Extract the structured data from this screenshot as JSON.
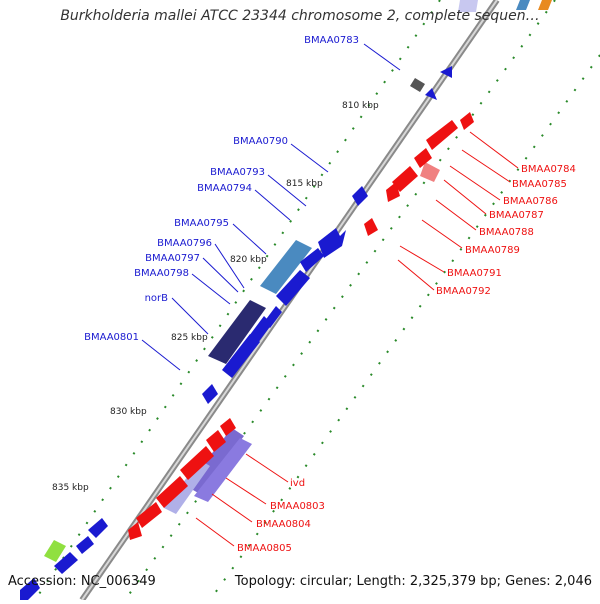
{
  "title": "Burkholderia mallei ATCC 23344 chromosome 2, complete sequen…",
  "accession": "Accession: NC_006349",
  "summary": "Topology: circular; Length: 2,325,379 bp; Genes: 2,046",
  "colors": {
    "forward": "#1a1ad0",
    "reverse": "#ee1111",
    "backbone": "#9a9a9a",
    "tick": "#2a8a2a",
    "cog_light_blue": "#4a8ac0",
    "cog_dark_navy": "#2a2a70",
    "cog_purple": "#6a5acd",
    "cog_lavender": "#b0b0e8",
    "cog_pink": "#f08080",
    "cog_gray": "#555555",
    "cog_lime": "#90e040"
  },
  "scale_labels": [
    "810 kbp",
    "815 kbp",
    "820 kbp",
    "825 kbp",
    "830 kbp",
    "835 kbp"
  ],
  "forward_gene_labels": [
    "BMAA0783",
    "BMAA0790",
    "BMAA0793",
    "BMAA0794",
    "BMAA0795",
    "BMAA0796",
    "BMAA0797",
    "BMAA0798",
    "norB",
    "BMAA0801"
  ],
  "reverse_gene_labels": [
    "BMAA0784",
    "BMAA0785",
    "BMAA0786",
    "BMAA0787",
    "BMAA0788",
    "BMAA0789",
    "BMAA0791",
    "BMAA0792",
    "ivd",
    "BMAA0803",
    "BMAA0804",
    "BMAA0805"
  ]
}
